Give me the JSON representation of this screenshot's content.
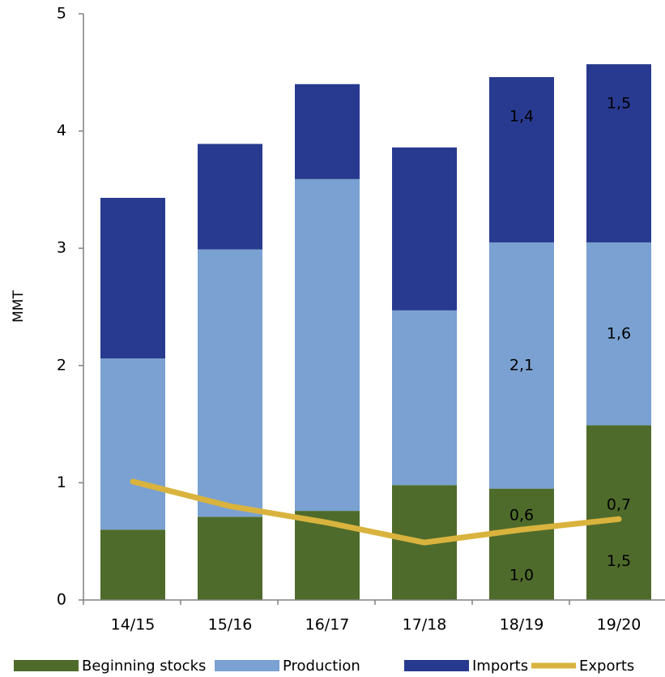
{
  "chart_data": {
    "type": "bar",
    "stacked": true,
    "categories": [
      "14/15",
      "15/16",
      "16/17",
      "17/18",
      "18/19",
      "19/20"
    ],
    "ylabel": "MMT",
    "ylim": [
      0,
      5
    ],
    "yticks": [
      0,
      1,
      2,
      3,
      4,
      5
    ],
    "grid": false,
    "legend_position": "bottom",
    "series": [
      {
        "name": "Beginning stocks",
        "kind": "bar",
        "color": "#4f6b2b",
        "values": [
          0.6,
          0.71,
          0.76,
          0.98,
          0.95,
          1.49
        ]
      },
      {
        "name": "Production",
        "kind": "bar",
        "color": "#7aa1d1",
        "values": [
          1.46,
          2.28,
          2.83,
          1.49,
          2.1,
          1.56
        ]
      },
      {
        "name": "Imports",
        "kind": "bar",
        "color": "#283a8f",
        "values": [
          1.37,
          0.9,
          0.81,
          1.39,
          1.41,
          1.52
        ]
      },
      {
        "name": "Exports",
        "kind": "line",
        "color": "#d9b33d",
        "values": [
          1.01,
          0.8,
          0.66,
          0.49,
          0.6,
          0.69
        ]
      }
    ],
    "data_labels": [
      {
        "category": "18/19",
        "series": "Beginning stocks",
        "text": "1,0"
      },
      {
        "category": "18/19",
        "series": "Exports",
        "text": "0,6"
      },
      {
        "category": "18/19",
        "series": "Production",
        "text": "2,1"
      },
      {
        "category": "18/19",
        "series": "Imports",
        "text": "1,4"
      },
      {
        "category": "19/20",
        "series": "Beginning stocks",
        "text": "1,5"
      },
      {
        "category": "19/20",
        "series": "Exports",
        "text": "0,7"
      },
      {
        "category": "19/20",
        "series": "Production",
        "text": "1,6"
      },
      {
        "category": "19/20",
        "series": "Imports",
        "text": "1,5"
      }
    ]
  }
}
